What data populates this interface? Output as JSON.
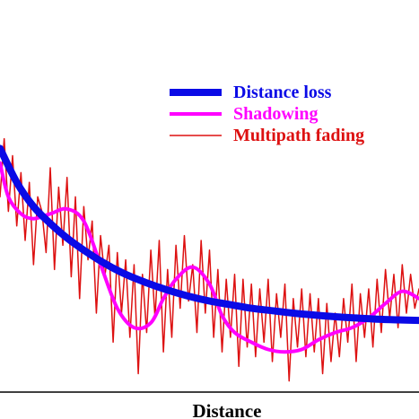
{
  "chart_data": {
    "type": "line",
    "title": "",
    "xlabel": "Distance",
    "ylabel": "",
    "grid": false,
    "axis_ticks": false,
    "legend_position": "top-right",
    "series": [
      {
        "name": "Distance loss",
        "color": "#0a0ae6",
        "style": "thick",
        "x": [
          0.0,
          0.04,
          0.08,
          0.12,
          0.16,
          0.2,
          0.25,
          0.3,
          0.35,
          0.4,
          0.45,
          0.5,
          0.55,
          0.6,
          0.65,
          0.7,
          0.75,
          0.8,
          0.85,
          0.9,
          0.95,
          1.0
        ],
        "y": [
          0.98,
          0.84,
          0.74,
          0.67,
          0.61,
          0.56,
          0.505,
          0.46,
          0.425,
          0.395,
          0.37,
          0.35,
          0.335,
          0.32,
          0.31,
          0.3,
          0.292,
          0.285,
          0.28,
          0.275,
          0.272,
          0.27
        ]
      },
      {
        "name": "Shadowing",
        "color": "#ff00ff",
        "style": "medium",
        "x": [
          0.0,
          0.02,
          0.05,
          0.08,
          0.12,
          0.16,
          0.2,
          0.24,
          0.28,
          0.32,
          0.36,
          0.39,
          0.42,
          0.46,
          0.5,
          0.53,
          0.56,
          0.6,
          0.64,
          0.68,
          0.72,
          0.76,
          0.8,
          0.84,
          0.88,
          0.92,
          0.96,
          1.0
        ],
        "y": [
          0.92,
          0.78,
          0.71,
          0.69,
          0.71,
          0.73,
          0.68,
          0.5,
          0.32,
          0.24,
          0.26,
          0.36,
          0.44,
          0.49,
          0.42,
          0.29,
          0.22,
          0.18,
          0.15,
          0.14,
          0.15,
          0.19,
          0.22,
          0.24,
          0.28,
          0.34,
          0.39,
          0.36
        ]
      },
      {
        "name": "Multipath fading",
        "color": "#dd1111",
        "style": "thin",
        "x": [
          0.0,
          0.01,
          0.02,
          0.03,
          0.04,
          0.05,
          0.06,
          0.07,
          0.08,
          0.09,
          0.1,
          0.11,
          0.12,
          0.13,
          0.14,
          0.15,
          0.16,
          0.17,
          0.18,
          0.19,
          0.2,
          0.21,
          0.22,
          0.23,
          0.24,
          0.25,
          0.26,
          0.27,
          0.28,
          0.29,
          0.3,
          0.31,
          0.32,
          0.33,
          0.34,
          0.35,
          0.36,
          0.37,
          0.38,
          0.39,
          0.4,
          0.41,
          0.42,
          0.43,
          0.44,
          0.45,
          0.46,
          0.47,
          0.48,
          0.49,
          0.5,
          0.51,
          0.52,
          0.53,
          0.54,
          0.55,
          0.56,
          0.57,
          0.58,
          0.59,
          0.6,
          0.61,
          0.62,
          0.63,
          0.64,
          0.65,
          0.66,
          0.67,
          0.68,
          0.69,
          0.7,
          0.71,
          0.72,
          0.73,
          0.74,
          0.75,
          0.76,
          0.77,
          0.78,
          0.79,
          0.8,
          0.81,
          0.82,
          0.83,
          0.84,
          0.85,
          0.86,
          0.87,
          0.88,
          0.89,
          0.9,
          0.91,
          0.92,
          0.93,
          0.94,
          0.95,
          0.96,
          0.97,
          0.98,
          0.99,
          1.0
        ],
        "y": [
          0.78,
          1.02,
          0.72,
          0.95,
          0.66,
          0.88,
          0.6,
          0.84,
          0.5,
          0.78,
          0.72,
          0.55,
          0.9,
          0.48,
          0.82,
          0.58,
          0.86,
          0.45,
          0.78,
          0.36,
          0.74,
          0.52,
          0.68,
          0.3,
          0.62,
          0.45,
          0.58,
          0.18,
          0.55,
          0.3,
          0.52,
          0.2,
          0.5,
          0.05,
          0.46,
          0.22,
          0.56,
          0.28,
          0.6,
          0.14,
          0.48,
          0.2,
          0.58,
          0.32,
          0.62,
          0.35,
          0.5,
          0.22,
          0.6,
          0.3,
          0.56,
          0.2,
          0.48,
          0.14,
          0.44,
          0.2,
          0.46,
          0.08,
          0.44,
          0.16,
          0.42,
          0.12,
          0.4,
          0.18,
          0.44,
          0.1,
          0.38,
          0.2,
          0.42,
          0.02,
          0.36,
          0.16,
          0.4,
          0.12,
          0.38,
          0.14,
          0.36,
          0.05,
          0.34,
          0.1,
          0.3,
          0.12,
          0.36,
          0.18,
          0.42,
          0.1,
          0.38,
          0.2,
          0.4,
          0.16,
          0.44,
          0.22,
          0.48,
          0.28,
          0.46,
          0.24,
          0.5,
          0.3,
          0.46,
          0.32,
          0.4
        ]
      }
    ]
  }
}
